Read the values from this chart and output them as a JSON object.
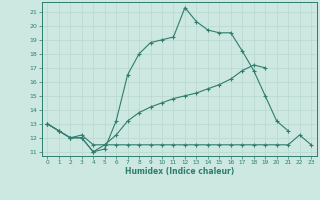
{
  "xlabel": "Humidex (Indice chaleur)",
  "bg_color": "#cce8e0",
  "line_color": "#2e7d6e",
  "grid_color": "#b8d8d0",
  "xlim": [
    -0.5,
    23.5
  ],
  "ylim": [
    10.7,
    21.7
  ],
  "yticks": [
    11,
    12,
    13,
    14,
    15,
    16,
    17,
    18,
    19,
    20,
    21
  ],
  "xticks": [
    0,
    1,
    2,
    3,
    4,
    5,
    6,
    7,
    8,
    9,
    10,
    11,
    12,
    13,
    14,
    15,
    16,
    17,
    18,
    19,
    20,
    21,
    22,
    23
  ],
  "line1_x": [
    0,
    1,
    2,
    3,
    4,
    5,
    6,
    7,
    8,
    9,
    10,
    11,
    12,
    13,
    14,
    15,
    16,
    17,
    18,
    19,
    20,
    21
  ],
  "line1_y": [
    13.0,
    12.5,
    12.0,
    12.0,
    11.0,
    11.2,
    13.2,
    16.5,
    18.0,
    18.8,
    19.0,
    19.2,
    21.3,
    20.3,
    19.7,
    19.5,
    19.5,
    18.2,
    16.8,
    15.0,
    13.2,
    12.5
  ],
  "line2_x": [
    0,
    1,
    2,
    3,
    4,
    5,
    6,
    7,
    8,
    9,
    10,
    11,
    12,
    13,
    14,
    15,
    16,
    17,
    18,
    19
  ],
  "line2_y": [
    13.0,
    12.5,
    12.0,
    12.0,
    11.0,
    11.5,
    12.2,
    13.2,
    13.8,
    14.2,
    14.5,
    14.8,
    15.0,
    15.2,
    15.5,
    15.8,
    16.2,
    16.8,
    17.2,
    17.0
  ],
  "line3_x": [
    0,
    1,
    2,
    3,
    4,
    5,
    6,
    7,
    8,
    9,
    10,
    11,
    12,
    13,
    14,
    15,
    16,
    17,
    18,
    19,
    20,
    21,
    22,
    23
  ],
  "line3_y": [
    13.0,
    12.5,
    12.0,
    12.2,
    11.5,
    11.5,
    11.5,
    11.5,
    11.5,
    11.5,
    11.5,
    11.5,
    11.5,
    11.5,
    11.5,
    11.5,
    11.5,
    11.5,
    11.5,
    11.5,
    11.5,
    11.5,
    12.2,
    11.5
  ]
}
